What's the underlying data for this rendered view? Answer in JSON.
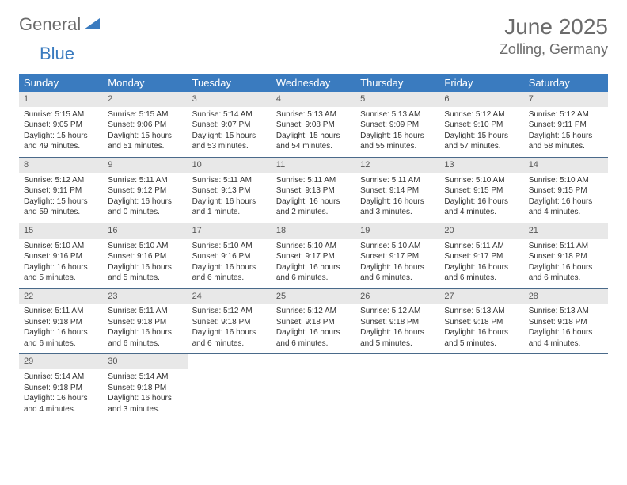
{
  "logo": {
    "part1": "General",
    "part2": "Blue"
  },
  "title": "June 2025",
  "location": "Zolling, Germany",
  "colors": {
    "header_bg": "#3a7bbf",
    "header_text": "#ffffff",
    "daynum_bg": "#e8e8e8",
    "daynum_text": "#555555",
    "page_bg": "#ffffff",
    "text": "#333333",
    "row_border": "#4a6a8a",
    "logo_gray": "#6b6b6b",
    "logo_blue": "#3a7bbf"
  },
  "day_headers": [
    "Sunday",
    "Monday",
    "Tuesday",
    "Wednesday",
    "Thursday",
    "Friday",
    "Saturday"
  ],
  "weeks": [
    [
      {
        "n": "1",
        "sunrise": "Sunrise: 5:15 AM",
        "sunset": "Sunset: 9:05 PM",
        "dl1": "Daylight: 15 hours",
        "dl2": "and 49 minutes."
      },
      {
        "n": "2",
        "sunrise": "Sunrise: 5:15 AM",
        "sunset": "Sunset: 9:06 PM",
        "dl1": "Daylight: 15 hours",
        "dl2": "and 51 minutes."
      },
      {
        "n": "3",
        "sunrise": "Sunrise: 5:14 AM",
        "sunset": "Sunset: 9:07 PM",
        "dl1": "Daylight: 15 hours",
        "dl2": "and 53 minutes."
      },
      {
        "n": "4",
        "sunrise": "Sunrise: 5:13 AM",
        "sunset": "Sunset: 9:08 PM",
        "dl1": "Daylight: 15 hours",
        "dl2": "and 54 minutes."
      },
      {
        "n": "5",
        "sunrise": "Sunrise: 5:13 AM",
        "sunset": "Sunset: 9:09 PM",
        "dl1": "Daylight: 15 hours",
        "dl2": "and 55 minutes."
      },
      {
        "n": "6",
        "sunrise": "Sunrise: 5:12 AM",
        "sunset": "Sunset: 9:10 PM",
        "dl1": "Daylight: 15 hours",
        "dl2": "and 57 minutes."
      },
      {
        "n": "7",
        "sunrise": "Sunrise: 5:12 AM",
        "sunset": "Sunset: 9:11 PM",
        "dl1": "Daylight: 15 hours",
        "dl2": "and 58 minutes."
      }
    ],
    [
      {
        "n": "8",
        "sunrise": "Sunrise: 5:12 AM",
        "sunset": "Sunset: 9:11 PM",
        "dl1": "Daylight: 15 hours",
        "dl2": "and 59 minutes."
      },
      {
        "n": "9",
        "sunrise": "Sunrise: 5:11 AM",
        "sunset": "Sunset: 9:12 PM",
        "dl1": "Daylight: 16 hours",
        "dl2": "and 0 minutes."
      },
      {
        "n": "10",
        "sunrise": "Sunrise: 5:11 AM",
        "sunset": "Sunset: 9:13 PM",
        "dl1": "Daylight: 16 hours",
        "dl2": "and 1 minute."
      },
      {
        "n": "11",
        "sunrise": "Sunrise: 5:11 AM",
        "sunset": "Sunset: 9:13 PM",
        "dl1": "Daylight: 16 hours",
        "dl2": "and 2 minutes."
      },
      {
        "n": "12",
        "sunrise": "Sunrise: 5:11 AM",
        "sunset": "Sunset: 9:14 PM",
        "dl1": "Daylight: 16 hours",
        "dl2": "and 3 minutes."
      },
      {
        "n": "13",
        "sunrise": "Sunrise: 5:10 AM",
        "sunset": "Sunset: 9:15 PM",
        "dl1": "Daylight: 16 hours",
        "dl2": "and 4 minutes."
      },
      {
        "n": "14",
        "sunrise": "Sunrise: 5:10 AM",
        "sunset": "Sunset: 9:15 PM",
        "dl1": "Daylight: 16 hours",
        "dl2": "and 4 minutes."
      }
    ],
    [
      {
        "n": "15",
        "sunrise": "Sunrise: 5:10 AM",
        "sunset": "Sunset: 9:16 PM",
        "dl1": "Daylight: 16 hours",
        "dl2": "and 5 minutes."
      },
      {
        "n": "16",
        "sunrise": "Sunrise: 5:10 AM",
        "sunset": "Sunset: 9:16 PM",
        "dl1": "Daylight: 16 hours",
        "dl2": "and 5 minutes."
      },
      {
        "n": "17",
        "sunrise": "Sunrise: 5:10 AM",
        "sunset": "Sunset: 9:16 PM",
        "dl1": "Daylight: 16 hours",
        "dl2": "and 6 minutes."
      },
      {
        "n": "18",
        "sunrise": "Sunrise: 5:10 AM",
        "sunset": "Sunset: 9:17 PM",
        "dl1": "Daylight: 16 hours",
        "dl2": "and 6 minutes."
      },
      {
        "n": "19",
        "sunrise": "Sunrise: 5:10 AM",
        "sunset": "Sunset: 9:17 PM",
        "dl1": "Daylight: 16 hours",
        "dl2": "and 6 minutes."
      },
      {
        "n": "20",
        "sunrise": "Sunrise: 5:11 AM",
        "sunset": "Sunset: 9:17 PM",
        "dl1": "Daylight: 16 hours",
        "dl2": "and 6 minutes."
      },
      {
        "n": "21",
        "sunrise": "Sunrise: 5:11 AM",
        "sunset": "Sunset: 9:18 PM",
        "dl1": "Daylight: 16 hours",
        "dl2": "and 6 minutes."
      }
    ],
    [
      {
        "n": "22",
        "sunrise": "Sunrise: 5:11 AM",
        "sunset": "Sunset: 9:18 PM",
        "dl1": "Daylight: 16 hours",
        "dl2": "and 6 minutes."
      },
      {
        "n": "23",
        "sunrise": "Sunrise: 5:11 AM",
        "sunset": "Sunset: 9:18 PM",
        "dl1": "Daylight: 16 hours",
        "dl2": "and 6 minutes."
      },
      {
        "n": "24",
        "sunrise": "Sunrise: 5:12 AM",
        "sunset": "Sunset: 9:18 PM",
        "dl1": "Daylight: 16 hours",
        "dl2": "and 6 minutes."
      },
      {
        "n": "25",
        "sunrise": "Sunrise: 5:12 AM",
        "sunset": "Sunset: 9:18 PM",
        "dl1": "Daylight: 16 hours",
        "dl2": "and 6 minutes."
      },
      {
        "n": "26",
        "sunrise": "Sunrise: 5:12 AM",
        "sunset": "Sunset: 9:18 PM",
        "dl1": "Daylight: 16 hours",
        "dl2": "and 5 minutes."
      },
      {
        "n": "27",
        "sunrise": "Sunrise: 5:13 AM",
        "sunset": "Sunset: 9:18 PM",
        "dl1": "Daylight: 16 hours",
        "dl2": "and 5 minutes."
      },
      {
        "n": "28",
        "sunrise": "Sunrise: 5:13 AM",
        "sunset": "Sunset: 9:18 PM",
        "dl1": "Daylight: 16 hours",
        "dl2": "and 4 minutes."
      }
    ],
    [
      {
        "n": "29",
        "sunrise": "Sunrise: 5:14 AM",
        "sunset": "Sunset: 9:18 PM",
        "dl1": "Daylight: 16 hours",
        "dl2": "and 4 minutes."
      },
      {
        "n": "30",
        "sunrise": "Sunrise: 5:14 AM",
        "sunset": "Sunset: 9:18 PM",
        "dl1": "Daylight: 16 hours",
        "dl2": "and 3 minutes."
      },
      null,
      null,
      null,
      null,
      null
    ]
  ]
}
